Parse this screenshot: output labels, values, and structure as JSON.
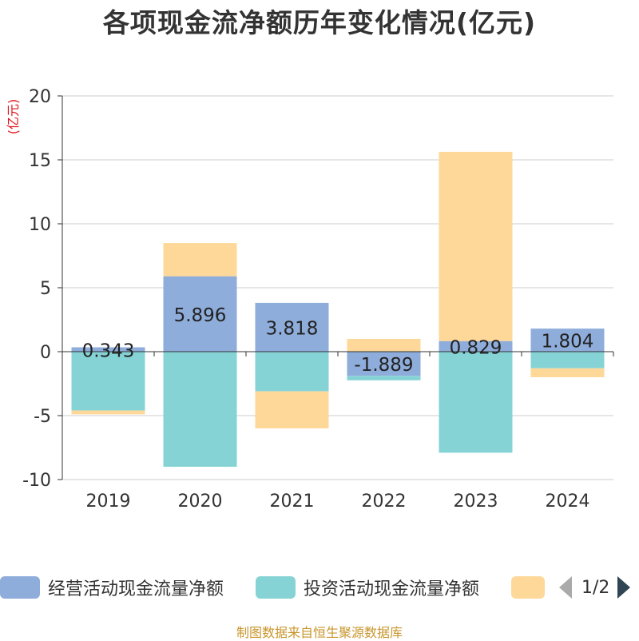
{
  "chart_data": {
    "type": "bar",
    "stacked": true,
    "title": "各项现金流净额历年变化情况(亿元)",
    "ylabel": "(亿元)",
    "xlabel": "",
    "categories": [
      "2019",
      "2020",
      "2021",
      "2022",
      "2023",
      "2024"
    ],
    "ylim": [
      -10,
      20
    ],
    "yticks": [
      20,
      15,
      10,
      5,
      0,
      -5,
      -10
    ],
    "grid": true,
    "series": [
      {
        "name": "经营活动现金流量净额",
        "color": "#8eaddb",
        "values": [
          0.343,
          5.896,
          3.818,
          -1.889,
          0.829,
          1.804
        ]
      },
      {
        "name": "投资活动现金流量净额",
        "color": "#86d3d6",
        "values": [
          -4.6,
          -9.0,
          -3.1,
          -0.35,
          -7.9,
          -1.3
        ]
      },
      {
        "name": "",
        "color": "#fed899",
        "values": [
          -0.3,
          2.6,
          -2.9,
          1.0,
          14.8,
          -0.7
        ]
      }
    ],
    "data_labels": [
      "0.343",
      "5.896",
      "3.818",
      "-1.889",
      "0.829",
      "1.804"
    ],
    "legend_position": "bottom"
  },
  "legend": {
    "items": [
      {
        "label": "经营活动现金流量净额",
        "color": "#8eaddb"
      },
      {
        "label": "投资活动现金流量净额",
        "color": "#86d3d6"
      },
      {
        "label": "",
        "color": "#fed899"
      }
    ],
    "pager": "1/2"
  },
  "source": "制图数据来自恒生聚源数据库"
}
